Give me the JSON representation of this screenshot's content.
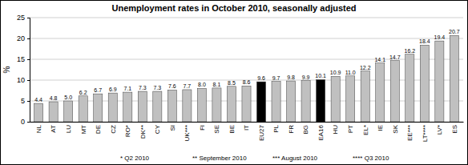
{
  "chart_data": {
    "type": "bar",
    "title": "Unemployment rates in October 2010, seasonally adjusted",
    "y_label": "%",
    "categories": [
      "NL",
      "AT",
      "LU",
      "MT",
      "DE",
      "CZ",
      "RO*",
      "DK**",
      "CY",
      "SI",
      "UK***",
      "FI",
      "SE",
      "BE",
      "IT",
      "EU27",
      "PL",
      "FR",
      "BG",
      "EA16",
      "HU",
      "PT",
      "EL*",
      "IE",
      "SK",
      "EE***",
      "LT****",
      "LV*",
      "ES"
    ],
    "values": [
      4.4,
      4.8,
      5.0,
      6.2,
      6.7,
      6.9,
      7.1,
      7.3,
      7.3,
      7.6,
      7.7,
      8.0,
      8.1,
      8.5,
      8.6,
      9.6,
      9.7,
      9.8,
      9.9,
      10.1,
      10.9,
      11.0,
      12.2,
      14.1,
      14.7,
      16.2,
      18.4,
      19.4,
      20.7
    ],
    "value_labels": [
      "4.4",
      "4.8",
      "5.0",
      "6.2",
      "6.7",
      "6.9",
      "7.1",
      "7.3",
      "7.3",
      "7.6",
      "7.7",
      "8.0",
      "8.1",
      "8.5",
      "8.6",
      "9.6",
      "9.7",
      "9.8",
      "9.9",
      "10.1",
      "10.9",
      "11.0",
      "12.2",
      "14.1",
      "14.7",
      "16.2",
      "18.4",
      "19.4",
      "20.7"
    ],
    "colors": [
      "#c0c0c0",
      "#c0c0c0",
      "#c0c0c0",
      "#c0c0c0",
      "#c0c0c0",
      "#c0c0c0",
      "#c0c0c0",
      "#c0c0c0",
      "#c0c0c0",
      "#c0c0c0",
      "#c0c0c0",
      "#c0c0c0",
      "#c0c0c0",
      "#c0c0c0",
      "#c0c0c0",
      "#000000",
      "#c0c0c0",
      "#c0c0c0",
      "#c0c0c0",
      "#000000",
      "#c0c0c0",
      "#c0c0c0",
      "#c0c0c0",
      "#c0c0c0",
      "#c0c0c0",
      "#c0c0c0",
      "#c0c0c0",
      "#c0c0c0",
      "#c0c0c0"
    ],
    "ylim": [
      0,
      25
    ],
    "yticks": [
      0,
      5,
      10,
      15,
      20,
      25
    ],
    "grid": true,
    "data_labels": true,
    "annotations": [
      "* Q2 2010",
      "** September 2010",
      "*** August 2010",
      "**** Q3 2010"
    ]
  }
}
